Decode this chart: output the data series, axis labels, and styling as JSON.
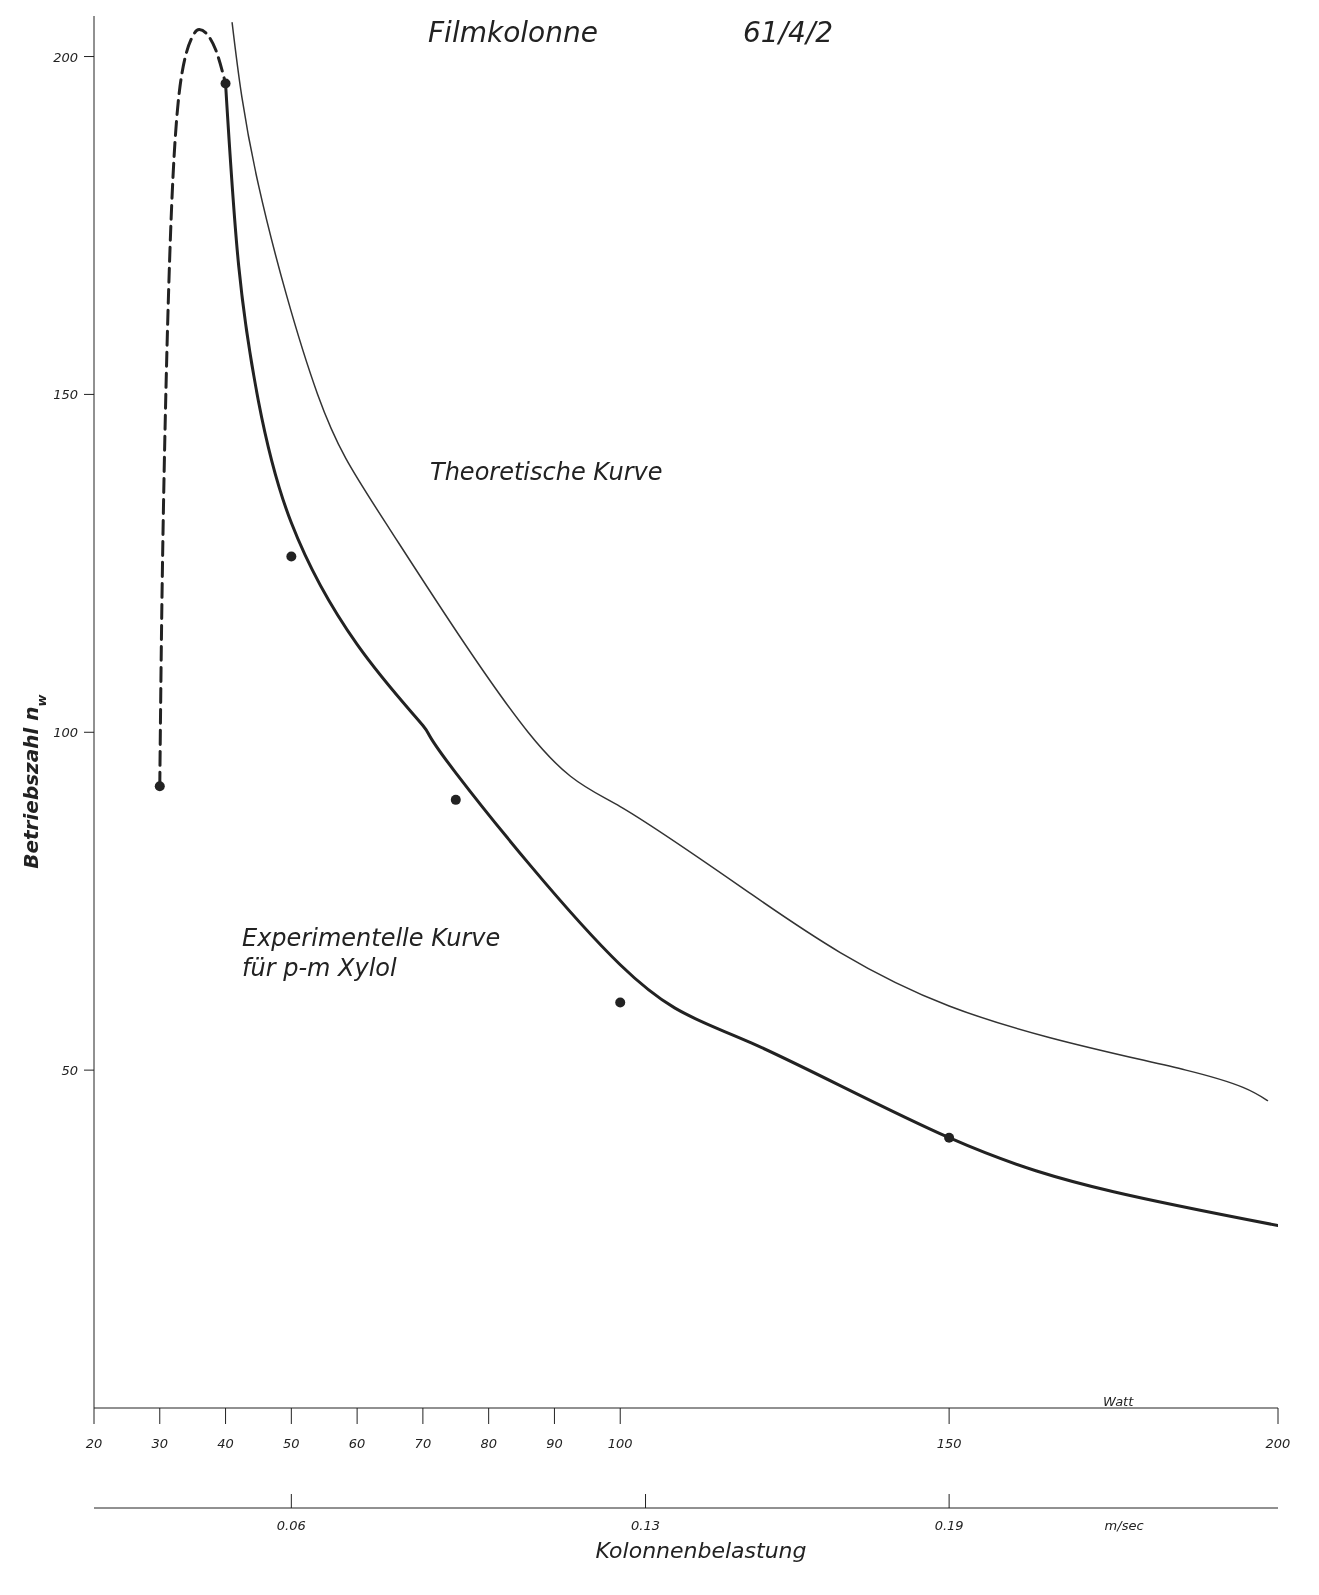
{
  "chart_data": {
    "type": "line",
    "title": "Filmkolonne",
    "subtitle": "61/4/2",
    "xlabel": "Kolonnenbelastung",
    "ylabel": "Betriebszahl n$_{w}$",
    "x2label": "m/sec",
    "annotations": [
      "Watt",
      "Theoretische Kurve",
      "Experimentelle Kurve für p-m Xylol"
    ],
    "xlim": [
      20,
      200
    ],
    "xticks": [
      20,
      30,
      40,
      50,
      60,
      70,
      80,
      90,
      100,
      150,
      200
    ],
    "x2lim": [
      0.021,
      0.255
    ],
    "x2ticks": [
      0.06,
      0.13,
      0.19
    ],
    "ylim": [
      0,
      206
    ],
    "yticks": [
      50,
      100,
      150,
      200
    ],
    "grid": false,
    "legend": false,
    "series": [
      {
        "type": "scatter",
        "color": "#222222",
        "marker": "circle",
        "x": [
          30,
          40,
          50,
          75,
          100,
          150
        ],
        "values": [
          92,
          196,
          126,
          90,
          60,
          40
        ]
      },
      {
        "color": "#222222",
        "line_style": "dashed",
        "x": [
          30,
          30.5,
          31.5,
          33,
          35,
          36,
          37,
          38.5,
          40
        ],
        "values": [
          92,
          130,
          170,
          195,
          203,
          204,
          203.5,
          201,
          196
        ]
      },
      {
        "color": "#222222",
        "line_style": "solid",
        "x": [
          40,
          42,
          45,
          50,
          60,
          70,
          75,
          100,
          120,
          150,
          175,
          200
        ],
        "values": [
          196,
          169,
          149,
          131,
          113,
          101,
          94,
          65.6,
          54,
          40,
          32,
          27
        ]
      },
      {
        "color": "#333333",
        "line_style": "solid",
        "x": [
          41,
          45,
          54,
          65,
          86,
          100,
          120,
          150,
          186,
          198.4
        ],
        "values": [
          205,
          181,
          150,
          130,
          100,
          89,
          76,
          59.5,
          50,
          45.5
        ]
      }
    ]
  }
}
